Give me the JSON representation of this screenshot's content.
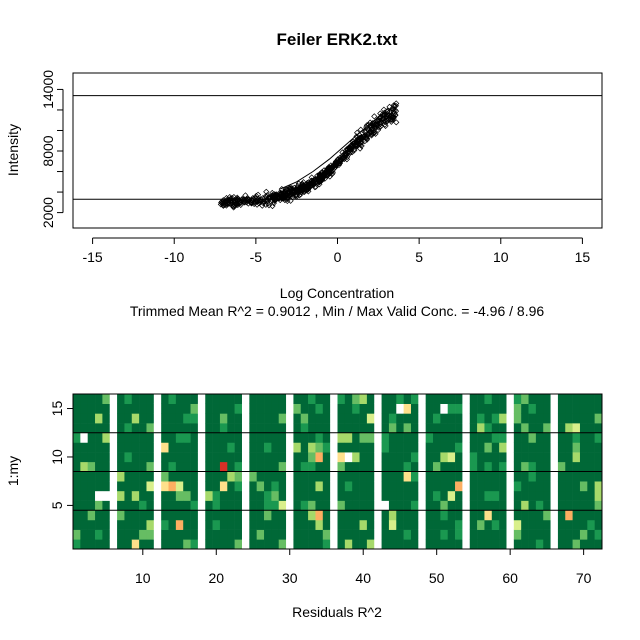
{
  "chart_data": [
    {
      "type": "scatter",
      "title": "Feiler ERK2.txt",
      "xlabel": "Log Concentration",
      "ylabel": "Intensity",
      "subtitle": "Trimmed Mean R^2 = 0.9012 , Min / Max Valid Conc. = -4.96 / 8.96",
      "xlim": [
        -16.2,
        16.2
      ],
      "ylim": [
        500,
        15600
      ],
      "xticks": [
        -15,
        -10,
        -5,
        0,
        5,
        10,
        15
      ],
      "yticks": [
        2000,
        4000,
        6000,
        8000,
        10000,
        12000,
        14000
      ],
      "ytick_labels": [
        "2000",
        "",
        "",
        "8000",
        "",
        "",
        "14000"
      ],
      "hlines": [
        13400,
        3300
      ],
      "marker": "open-diamond",
      "fit_curve": {
        "x": [
          -3.5,
          -2.5,
          -1.5,
          -0.5,
          0.5,
          1.5,
          2.5,
          3.5
        ],
        "y": [
          4300,
          5000,
          6000,
          7200,
          8600,
          10000,
          11300,
          12300
        ]
      },
      "point_cloud": {
        "count": 700,
        "x_range": [
          -7.2,
          3.6
        ],
        "y_range": [
          2400,
          15000
        ]
      },
      "grid": false
    },
    {
      "type": "heatmap",
      "xlabel": "Residuals R^2",
      "ylabel": "1:my",
      "xlim": [
        0.5,
        72.5
      ],
      "ylim": [
        0.5,
        16.5
      ],
      "xticks": [
        10,
        20,
        30,
        40,
        50,
        60,
        70
      ],
      "yticks": [
        5,
        10,
        15
      ],
      "hlines": [
        4.5,
        8.5,
        12.5
      ],
      "columns": 72,
      "rows": 16,
      "blank_columns": [
        6,
        12,
        18,
        24,
        30,
        36,
        42,
        48,
        54,
        60,
        66
      ],
      "blank_cells": [
        [
          2,
          12
        ],
        [
          4,
          6
        ],
        [
          5,
          6
        ],
        [
          38,
          10
        ],
        [
          45,
          15
        ],
        [
          51,
          15
        ],
        [
          42,
          5
        ],
        [
          43,
          5
        ]
      ],
      "colors": {
        "base": "#006837",
        "scale": [
          "#1a9850",
          "#66bd63",
          "#a6d96a",
          "#d9ef8b",
          "#fee08b",
          "#fdae61",
          "#d73027"
        ]
      },
      "grid": false
    }
  ]
}
